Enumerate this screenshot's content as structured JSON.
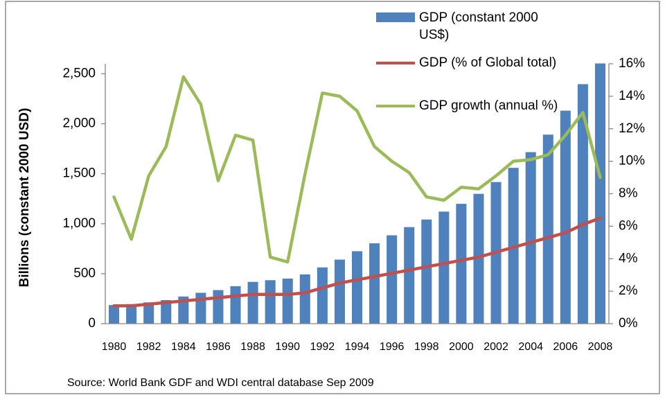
{
  "chart_data": {
    "type": "bar_line",
    "y_axis_label": "Billions (constant 2000 USD)",
    "source": "Source: World Bank GDF and WDI central database Sep 2009",
    "categories": [
      "1980",
      null,
      "1982",
      null,
      "1984",
      null,
      "1986",
      null,
      "1988",
      null,
      "1990",
      null,
      "1992",
      null,
      "1994",
      null,
      "1996",
      null,
      "1998",
      null,
      "2000",
      null,
      "2002",
      null,
      "2004",
      null,
      "2006",
      null,
      "2008"
    ],
    "series": [
      {
        "name": "GDP (constant 2000 US$)",
        "type": "bar",
        "color": "#4f81bd",
        "axis": "y",
        "values": [
          186,
          196,
          213,
          236,
          272,
          309,
          336,
          375,
          418,
          435,
          451,
          493,
          563,
          641,
          725,
          804,
          884,
          966,
          1042,
          1121,
          1199,
          1299,
          1417,
          1559,
          1716,
          1891,
          2131,
          2396,
          2603
        ]
      },
      {
        "name": "GDP (% of Global total)",
        "type": "line",
        "color": "#c0504d",
        "axis": "y2",
        "values": [
          1.1,
          1.1,
          1.2,
          1.3,
          1.4,
          1.5,
          1.6,
          1.7,
          1.8,
          1.8,
          1.8,
          1.9,
          2.2,
          2.5,
          2.7,
          2.9,
          3.1,
          3.3,
          3.5,
          3.7,
          3.9,
          4.1,
          4.4,
          4.7,
          5.0,
          5.3,
          5.6,
          6.1,
          6.5
        ]
      },
      {
        "name": "GDP growth (annual %)",
        "type": "line",
        "color": "#9bbb59",
        "axis": "y2",
        "values": [
          7.8,
          5.2,
          9.1,
          10.9,
          15.2,
          13.5,
          8.8,
          11.6,
          11.3,
          4.1,
          3.8,
          9.2,
          14.2,
          14.0,
          13.1,
          10.9,
          10.0,
          9.3,
          7.8,
          7.6,
          8.4,
          8.3,
          9.1,
          10.0,
          10.1,
          10.4,
          11.6,
          13.0,
          9.0
        ]
      }
    ],
    "ylim": [
      0,
      2600
    ],
    "yticks": [
      0,
      500,
      {
        "value": 1000,
        "label": "1,000"
      },
      {
        "value": 1500,
        "label": "1,500"
      },
      {
        "value": 2000,
        "label": "2,000"
      },
      {
        "value": 2500,
        "label": "2,500"
      }
    ],
    "y2lim": [
      0,
      16
    ],
    "y2ticks": [
      {
        "value": 0,
        "label": "0%"
      },
      {
        "value": 2,
        "label": "2%"
      },
      {
        "value": 4,
        "label": "4%"
      },
      {
        "value": 6,
        "label": "6%"
      },
      {
        "value": 8,
        "label": "8%"
      },
      {
        "value": 10,
        "label": "10%"
      },
      {
        "value": 12,
        "label": "12%"
      },
      {
        "value": 14,
        "label": "14%"
      },
      {
        "value": 16,
        "label": "16%"
      }
    ],
    "grid": false,
    "legend": "top-right"
  }
}
